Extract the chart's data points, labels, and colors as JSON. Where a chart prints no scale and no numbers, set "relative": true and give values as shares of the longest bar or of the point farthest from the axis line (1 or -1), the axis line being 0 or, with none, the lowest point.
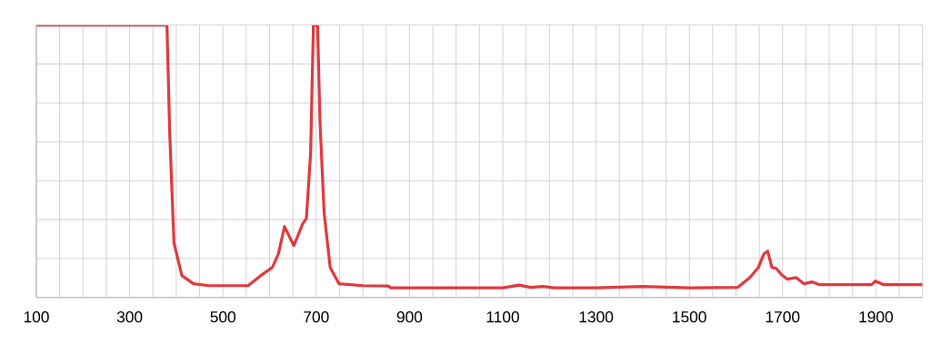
{
  "chart_data": {
    "type": "line",
    "relative": true,
    "color": "#e0393e",
    "grid": true,
    "marker": "none",
    "line_style": "solid",
    "x": [
      100,
      380,
      386,
      395,
      412,
      437,
      470,
      554,
      581,
      606,
      619,
      632,
      652,
      671,
      679,
      688,
      694,
      703,
      708,
      717,
      730,
      749,
      800,
      854,
      860,
      1000,
      1100,
      1135,
      1160,
      1186,
      1210,
      1300,
      1400,
      1500,
      1604,
      1630,
      1648,
      1660,
      1668,
      1677,
      1686,
      1698,
      1710,
      1729,
      1746,
      1763,
      1778,
      1850,
      1891,
      1899,
      1916,
      2000
    ],
    "values": [
      1,
      1,
      0.6,
      0.2,
      0.08,
      0.05,
      0.043,
      0.043,
      0.08,
      0.11,
      0.16,
      0.26,
      0.19,
      0.27,
      0.29,
      0.53,
      1,
      1,
      0.65,
      0.31,
      0.11,
      0.05,
      0.043,
      0.042,
      0.035,
      0.035,
      0.035,
      0.045,
      0.037,
      0.04,
      0.035,
      0.035,
      0.04,
      0.035,
      0.037,
      0.073,
      0.11,
      0.16,
      0.17,
      0.11,
      0.107,
      0.083,
      0.067,
      0.073,
      0.05,
      0.057,
      0.047,
      0.047,
      0.047,
      0.06,
      0.047,
      0.047
    ],
    "xlim": [
      100,
      2000
    ],
    "xticks": [
      100,
      {
        "value": 150,
        "label": null
      },
      {
        "value": 200,
        "label": null
      },
      {
        "value": 250,
        "label": null
      },
      300,
      {
        "value": 350,
        "label": null
      },
      {
        "value": 400,
        "label": null
      },
      {
        "value": 450,
        "label": null
      },
      500,
      {
        "value": 550,
        "label": null
      },
      {
        "value": 600,
        "label": null
      },
      {
        "value": 650,
        "label": null
      },
      700,
      {
        "value": 750,
        "label": null
      },
      {
        "value": 800,
        "label": null
      },
      {
        "value": 850,
        "label": null
      },
      900,
      {
        "value": 950,
        "label": null
      },
      {
        "value": 1000,
        "label": null
      },
      {
        "value": 1050,
        "label": null
      },
      1100,
      {
        "value": 1150,
        "label": null
      },
      {
        "value": 1200,
        "label": null
      },
      {
        "value": 1250,
        "label": null
      },
      1300,
      {
        "value": 1350,
        "label": null
      },
      {
        "value": 1400,
        "label": null
      },
      {
        "value": 1450,
        "label": null
      },
      1500,
      {
        "value": 1550,
        "label": null
      },
      {
        "value": 1600,
        "label": null
      },
      {
        "value": 1650,
        "label": null
      },
      1700,
      {
        "value": 1750,
        "label": null
      },
      {
        "value": 1800,
        "label": null
      },
      {
        "value": 1850,
        "label": null
      },
      1900,
      {
        "value": 1950,
        "label": null
      },
      {
        "value": 2000,
        "label": null
      }
    ]
  }
}
